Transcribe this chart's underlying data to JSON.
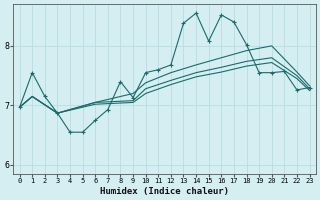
{
  "xlabel": "Humidex (Indice chaleur)",
  "background_color": "#d4eef2",
  "grid_color": "#b8dde4",
  "line_color": "#1a6b6a",
  "xlim": [
    -0.5,
    23.5
  ],
  "ylim": [
    5.85,
    8.7
  ],
  "yticks": [
    6,
    7,
    8
  ],
  "xticks": [
    0,
    1,
    2,
    3,
    4,
    5,
    6,
    7,
    8,
    9,
    10,
    11,
    12,
    13,
    14,
    15,
    16,
    17,
    18,
    19,
    20,
    21,
    22,
    23
  ],
  "line1_x": [
    0,
    1,
    2,
    3,
    4,
    5,
    6,
    7,
    8,
    9,
    10,
    11,
    12,
    13,
    14,
    15,
    16,
    17,
    18,
    19,
    20,
    21,
    22,
    23
  ],
  "line1_y": [
    6.97,
    7.55,
    7.15,
    6.87,
    6.55,
    6.55,
    6.75,
    6.93,
    7.4,
    7.13,
    7.55,
    7.6,
    7.68,
    8.38,
    8.55,
    8.08,
    8.52,
    8.4,
    8.02,
    7.55,
    7.55,
    7.57,
    7.26,
    7.3
  ],
  "line2_x": [
    0,
    1,
    3,
    6,
    9,
    10,
    12,
    14,
    16,
    18,
    20,
    22,
    23
  ],
  "line2_y": [
    6.97,
    7.15,
    6.87,
    7.05,
    7.2,
    7.38,
    7.55,
    7.68,
    7.8,
    7.92,
    8.0,
    7.56,
    7.33
  ],
  "line3_x": [
    0,
    1,
    3,
    6,
    9,
    10,
    12,
    14,
    16,
    18,
    20,
    22,
    23
  ],
  "line3_y": [
    6.97,
    7.15,
    6.87,
    7.05,
    7.08,
    7.28,
    7.42,
    7.55,
    7.64,
    7.74,
    7.8,
    7.5,
    7.28
  ],
  "line4_x": [
    0,
    1,
    3,
    6,
    9,
    10,
    12,
    14,
    16,
    18,
    20,
    22,
    23
  ],
  "line4_y": [
    6.97,
    7.15,
    6.87,
    7.02,
    7.05,
    7.2,
    7.35,
    7.48,
    7.56,
    7.66,
    7.72,
    7.45,
    7.25
  ]
}
